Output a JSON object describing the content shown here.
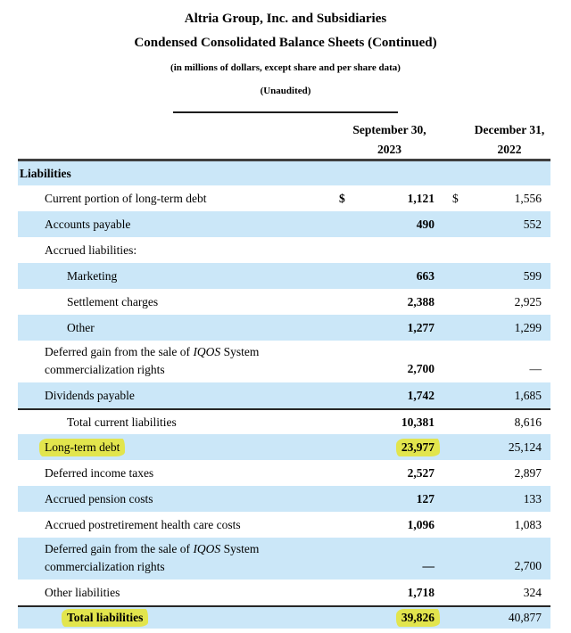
{
  "header": {
    "title1": "Altria Group, Inc. and Subsidiaries",
    "title2": "Condensed Consolidated Balance Sheets (Continued)",
    "subtitle1": "(in millions of dollars, except share and per share data)",
    "subtitle2": "(Unaudited)"
  },
  "columns": [
    {
      "line1": "September 30,",
      "line2": "2023"
    },
    {
      "line1": "December 31,",
      "line2": "2022"
    }
  ],
  "colors": {
    "row_blue": "#cbe7f8",
    "highlight_yellow": "#e2e54d",
    "header_line": "#3f3f3f",
    "total_line": "#262626"
  },
  "table": {
    "rows": [
      {
        "label": "Liabilities",
        "indent": 0,
        "shaded": true,
        "bold": true,
        "val1": "",
        "val2": ""
      },
      {
        "label": "Current portion of long-term debt",
        "indent": 1,
        "dollar": true,
        "val1": "1,121",
        "val2": "1,556"
      },
      {
        "label": "Accounts payable",
        "indent": 1,
        "shaded": true,
        "val1": "490",
        "val2": "552"
      },
      {
        "label": "Accrued liabilities:",
        "indent": 1,
        "val1": "",
        "val2": ""
      },
      {
        "label": "Marketing",
        "indent": 2,
        "shaded": true,
        "val1": "663",
        "val2": "599"
      },
      {
        "label": "Settlement charges",
        "indent": 2,
        "val1": "2,388",
        "val2": "2,925"
      },
      {
        "label": "Other",
        "indent": 2,
        "shaded": true,
        "val1": "1,277",
        "val2": "1,299"
      },
      {
        "label_parts": {
          "pre": "Deferred gain from the sale of ",
          "italic": "IQOS",
          "post": " System commercialization rights"
        },
        "indent": 1,
        "two_line": true,
        "val1": "2,700",
        "val2": "—"
      },
      {
        "label": "Dividends payable",
        "indent": 1,
        "shaded": true,
        "val1": "1,742",
        "val2": "1,685"
      },
      {
        "label": "Total current liabilities",
        "indent": 2,
        "top_border": true,
        "val1": "10,381",
        "val2": "8,616"
      },
      {
        "label": "Long-term debt",
        "indent": 1,
        "shaded": true,
        "highlight_label": true,
        "highlight_val1": true,
        "val1": "23,977",
        "val2": "25,124"
      },
      {
        "label": "Deferred income taxes",
        "indent": 1,
        "val1": "2,527",
        "val2": "2,897"
      },
      {
        "label": "Accrued pension costs",
        "indent": 1,
        "shaded": true,
        "val1": "127",
        "val2": "133"
      },
      {
        "label": "Accrued postretirement health care costs",
        "indent": 1,
        "val1": "1,096",
        "val2": "1,083"
      },
      {
        "label_parts": {
          "pre": "Deferred gain from the sale of ",
          "italic": "IQOS",
          "post": " System commercialization rights"
        },
        "indent": 1,
        "shaded": true,
        "two_line": true,
        "val1": "—",
        "val2": "2,700"
      },
      {
        "label": "Other liabilities",
        "indent": 1,
        "val1": "1,718",
        "val2": "324"
      },
      {
        "label": "Total liabilities",
        "indent": 2,
        "shaded": true,
        "bold": true,
        "top_border": true,
        "highlight_label": true,
        "highlight_val1": true,
        "val1": "39,826",
        "val2": "40,877"
      }
    ]
  }
}
